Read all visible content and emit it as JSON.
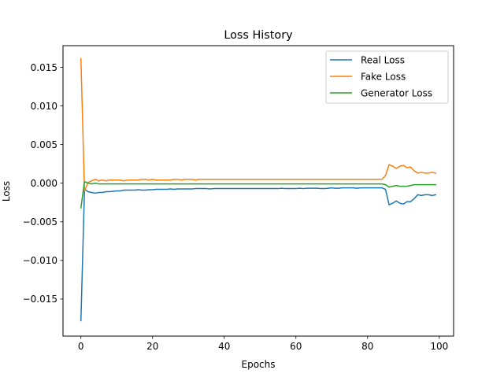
{
  "chart_data": {
    "type": "line",
    "title": "Loss History",
    "xlabel": "Epochs",
    "ylabel": "Loss",
    "xlim": [
      -5,
      104
    ],
    "ylim": [
      -0.0198,
      0.0178
    ],
    "xticks": [
      0,
      20,
      40,
      60,
      80,
      100
    ],
    "xtick_labels": [
      "0",
      "20",
      "40",
      "60",
      "80",
      "100"
    ],
    "yticks": [
      -0.015,
      -0.01,
      -0.005,
      0.0,
      0.005,
      0.01,
      0.015
    ],
    "ytick_labels": [
      "−0.015",
      "−0.010",
      "−0.005",
      "0.000",
      "0.005",
      "0.010",
      "0.015"
    ],
    "grid": false,
    "legend": "top-right",
    "x": [
      0,
      1,
      2,
      3,
      4,
      5,
      6,
      7,
      8,
      9,
      10,
      11,
      12,
      13,
      14,
      15,
      16,
      17,
      18,
      19,
      20,
      21,
      22,
      23,
      24,
      25,
      26,
      27,
      28,
      29,
      30,
      31,
      32,
      33,
      34,
      35,
      36,
      37,
      38,
      39,
      40,
      41,
      42,
      43,
      44,
      45,
      46,
      47,
      48,
      49,
      50,
      51,
      52,
      53,
      54,
      55,
      56,
      57,
      58,
      59,
      60,
      61,
      62,
      63,
      64,
      65,
      66,
      67,
      68,
      69,
      70,
      71,
      72,
      73,
      74,
      75,
      76,
      77,
      78,
      79,
      80,
      81,
      82,
      83,
      84,
      85,
      86,
      87,
      88,
      89,
      90,
      91,
      92,
      93,
      94,
      95,
      96,
      97,
      98,
      99
    ],
    "series": [
      {
        "name": "Real Loss",
        "color": "#1f77b4",
        "values": [
          -0.0178,
          -0.0008,
          -0.0011,
          -0.0012,
          -0.0013,
          -0.0012,
          -0.0012,
          -0.0011,
          -0.0011,
          -0.00105,
          -0.001,
          -0.001,
          -0.0009,
          -0.0009,
          -0.0009,
          -0.0009,
          -0.00085,
          -0.0009,
          -0.0009,
          -0.00085,
          -0.00085,
          -0.0008,
          -0.0008,
          -0.0008,
          -0.0008,
          -0.00075,
          -0.0008,
          -0.00075,
          -0.00075,
          -0.00075,
          -0.00075,
          -0.00075,
          -0.0007,
          -0.0007,
          -0.0007,
          -0.0007,
          -0.00075,
          -0.0007,
          -0.0007,
          -0.0007,
          -0.0007,
          -0.0007,
          -0.0007,
          -0.0007,
          -0.0007,
          -0.0007,
          -0.0007,
          -0.0007,
          -0.0007,
          -0.0007,
          -0.0007,
          -0.0007,
          -0.0007,
          -0.0007,
          -0.0007,
          -0.0007,
          -0.00065,
          -0.0007,
          -0.0007,
          -0.0007,
          -0.0007,
          -0.00065,
          -0.0007,
          -0.00065,
          -0.00065,
          -0.00065,
          -0.00065,
          -0.0007,
          -0.0007,
          -0.00065,
          -0.0006,
          -0.00065,
          -0.00065,
          -0.0006,
          -0.0006,
          -0.0006,
          -0.0006,
          -0.00065,
          -0.0006,
          -0.0006,
          -0.0006,
          -0.0006,
          -0.0006,
          -0.0006,
          -0.0006,
          -0.0008,
          -0.0028,
          -0.0026,
          -0.0023,
          -0.0026,
          -0.0027,
          -0.0024,
          -0.0024,
          -0.002,
          -0.0015,
          -0.0016,
          -0.0015,
          -0.0015,
          -0.0016,
          -0.0015
        ]
      },
      {
        "name": "Fake Loss",
        "color": "#ff7f0e",
        "values": [
          0.0161,
          -0.001,
          0.0001,
          0.0003,
          0.0005,
          0.0003,
          0.0004,
          0.0003,
          0.0004,
          0.0004,
          0.0004,
          0.0004,
          0.0003,
          0.0004,
          0.0004,
          0.0004,
          0.0004,
          0.0005,
          0.0005,
          0.0004,
          0.0005,
          0.0004,
          0.0004,
          0.0004,
          0.0004,
          0.0004,
          0.0005,
          0.0005,
          0.0004,
          0.0005,
          0.0005,
          0.0005,
          0.0004,
          0.0005,
          0.0005,
          0.0005,
          0.0005,
          0.0005,
          0.0005,
          0.0005,
          0.0005,
          0.0005,
          0.0005,
          0.0005,
          0.0005,
          0.0005,
          0.0005,
          0.0005,
          0.0005,
          0.0005,
          0.0005,
          0.0005,
          0.0005,
          0.0005,
          0.0005,
          0.0005,
          0.0005,
          0.0005,
          0.0005,
          0.0005,
          0.0005,
          0.0005,
          0.0005,
          0.0005,
          0.0005,
          0.0005,
          0.0005,
          0.0005,
          0.0005,
          0.0005,
          0.0005,
          0.0005,
          0.0005,
          0.0005,
          0.0005,
          0.0005,
          0.0005,
          0.0005,
          0.0005,
          0.0005,
          0.0005,
          0.0005,
          0.0005,
          0.0005,
          0.0005,
          0.001,
          0.0024,
          0.0022,
          0.0019,
          0.0022,
          0.0023,
          0.002,
          0.0021,
          0.0016,
          0.0013,
          0.0014,
          0.0013,
          0.0013,
          0.0014,
          0.0013
        ]
      },
      {
        "name": "Generator Loss",
        "color": "#2ca02c",
        "values": [
          -0.0032,
          0.0002,
          0.0,
          -0.0001,
          0.0,
          -0.0001,
          -0.0001,
          -0.0001,
          -0.0001,
          -0.0001,
          -0.0001,
          -0.0001,
          -0.0001,
          -0.0001,
          -0.0001,
          -0.0001,
          -0.0001,
          -0.0001,
          -0.0001,
          -0.0001,
          -0.0001,
          -0.0001,
          -0.0001,
          -0.0001,
          -0.0001,
          -0.0001,
          -0.0001,
          -0.0001,
          -0.0001,
          -0.0001,
          -0.0001,
          -0.0001,
          -0.0001,
          -0.0001,
          -0.0001,
          -0.0001,
          -0.0001,
          -0.0001,
          -0.0001,
          -0.0001,
          -0.0001,
          -0.0001,
          -0.0001,
          -0.0001,
          -0.0001,
          -0.0001,
          -0.0001,
          -0.0001,
          -0.0001,
          -0.0001,
          -0.0001,
          -0.0001,
          -0.0001,
          -0.0001,
          -0.0001,
          -0.0001,
          -0.0001,
          -0.0001,
          -0.0001,
          -0.0001,
          -0.0001,
          -0.0001,
          -0.0001,
          -0.0001,
          -0.0001,
          -0.0001,
          -0.0001,
          -0.0001,
          -0.0001,
          -0.0001,
          -0.0001,
          -0.0001,
          -0.0001,
          -0.0001,
          -0.0001,
          -0.0001,
          -0.0001,
          -0.0001,
          -0.0001,
          -0.0001,
          -0.0001,
          -0.0001,
          -0.0001,
          -0.0001,
          -0.0001,
          -0.0002,
          -0.0005,
          -0.0004,
          -0.0003,
          -0.0004,
          -0.0004,
          -0.0004,
          -0.0003,
          -0.0002,
          -0.0002,
          -0.0002,
          -0.0002,
          -0.0002,
          -0.0002,
          -0.0002
        ]
      }
    ]
  }
}
